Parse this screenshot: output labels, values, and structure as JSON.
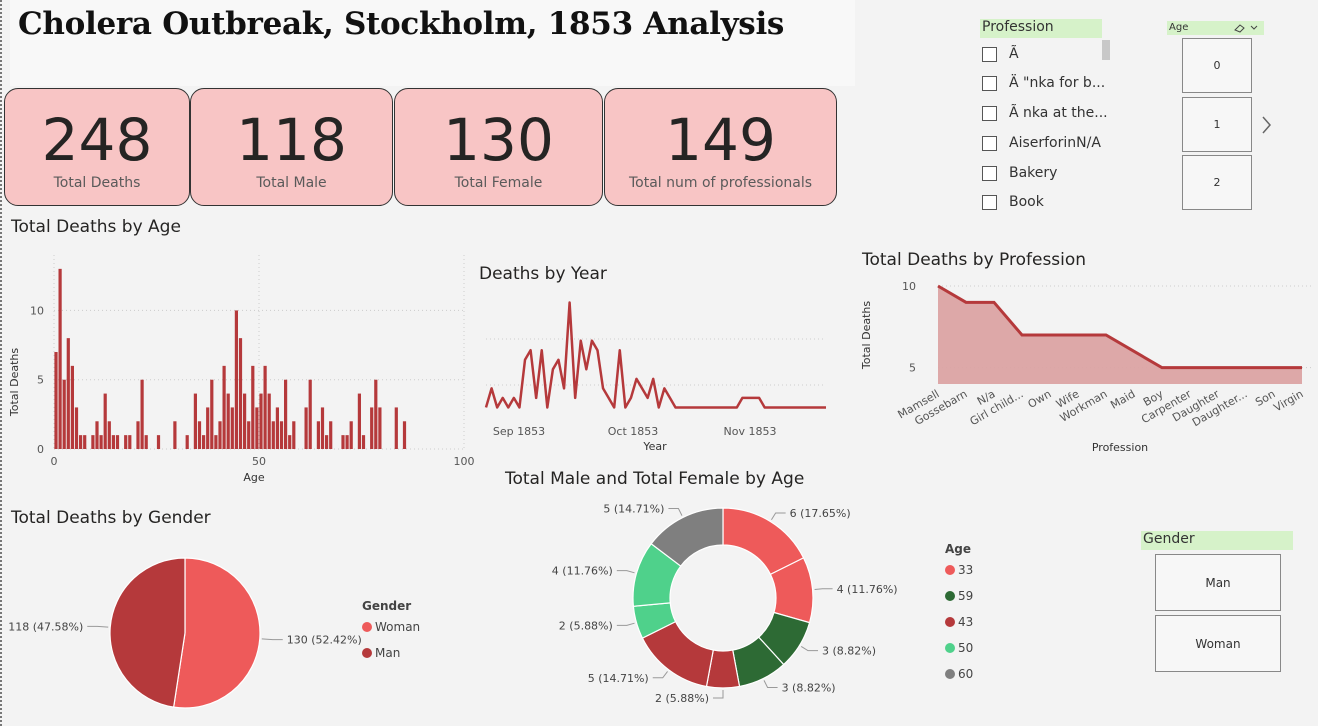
{
  "title": "Cholera Outbreak, Stockholm, 1853 Analysis",
  "kpis": [
    {
      "value": "248",
      "label": "Total Deaths"
    },
    {
      "value": "118",
      "label": "Total Male"
    },
    {
      "value": "130",
      "label": "Total Female"
    },
    {
      "value": "149",
      "label": "Total num of  professionals"
    }
  ],
  "profession_slicer": {
    "header": "Profession",
    "items": [
      "Ã",
      "Ä \"nka for b...",
      "Ã nka at the...",
      "AiserforinN/A",
      "Bakery",
      "Book"
    ]
  },
  "age_slicer": {
    "header": "Age",
    "tiles": [
      "0",
      "1",
      "2"
    ]
  },
  "gender_slicer": {
    "header": "Gender",
    "tiles": [
      "Man",
      "Woman"
    ]
  },
  "colors": {
    "dark_red": "#b5393b",
    "red": "#ee5a5a",
    "dark_green": "#2d6a34",
    "light_green": "#4fd18b",
    "gray": "#7f7f7f",
    "area_fill": "#dba3a3",
    "kpi_bg": "#f8c5c5"
  },
  "chart_data": [
    {
      "id": "age",
      "type": "bar",
      "title": "Total Deaths by Age",
      "xlabel": "Age",
      "ylabel": "Total Deaths",
      "xticks": [
        0,
        50,
        100
      ],
      "yticks": [
        0,
        5,
        10
      ],
      "xlim": [
        0,
        100
      ],
      "ylim": [
        0,
        14
      ],
      "x": [
        0,
        1,
        2,
        3,
        4,
        5,
        6,
        7,
        8,
        9,
        10,
        11,
        12,
        13,
        14,
        15,
        16,
        17,
        18,
        19,
        20,
        21,
        22,
        23,
        24,
        25,
        26,
        27,
        28,
        29,
        30,
        31,
        32,
        33,
        34,
        35,
        36,
        37,
        38,
        39,
        40,
        41,
        42,
        43,
        44,
        45,
        46,
        47,
        48,
        49,
        50,
        51,
        52,
        53,
        54,
        55,
        56,
        57,
        58,
        59,
        60,
        61,
        62,
        63,
        64,
        65,
        66,
        67,
        68,
        69,
        70,
        71,
        72,
        73,
        74,
        75,
        76,
        77,
        78,
        79,
        80,
        81,
        82,
        83,
        84,
        85,
        86
      ],
      "values": [
        7,
        13,
        5,
        8,
        6,
        3,
        1,
        1,
        0,
        1,
        2,
        1,
        4,
        2,
        1,
        1,
        0,
        1,
        1,
        0,
        2,
        5,
        1,
        0,
        0,
        1,
        0,
        0,
        0,
        2,
        0,
        0,
        1,
        0,
        4,
        2,
        1,
        3,
        5,
        1,
        2,
        6,
        4,
        3,
        10,
        8,
        4,
        2,
        6,
        3,
        4,
        6,
        4,
        2,
        3,
        2,
        5,
        1,
        2,
        0,
        0,
        3,
        5,
        0,
        2,
        3,
        1,
        2,
        0,
        0,
        1,
        1,
        2,
        0,
        4,
        1,
        0,
        3,
        5,
        3,
        0,
        0,
        0,
        3,
        0,
        2,
        0
      ],
      "series_color": "#b5393b"
    },
    {
      "id": "year",
      "type": "line",
      "title": "Deaths by Year",
      "xlabel": "Year",
      "xticks": [
        "Sep 1853",
        "Oct 1853",
        "Nov 1853"
      ],
      "ylim": [
        0,
        13
      ],
      "values": [
        1,
        3,
        1,
        2,
        1,
        2,
        1,
        6,
        7,
        2,
        7,
        1,
        5,
        6,
        3,
        12,
        2,
        8,
        5,
        8,
        7,
        3,
        2,
        1,
        7,
        1,
        2,
        4,
        3,
        2,
        4,
        1,
        3,
        2,
        1,
        1,
        1,
        1,
        1,
        1,
        1,
        1,
        1,
        1,
        1,
        1,
        2,
        2,
        2,
        2,
        1,
        1,
        1,
        1,
        1,
        1,
        1,
        1,
        1,
        1,
        1,
        1
      ],
      "series_color": "#b5393b"
    },
    {
      "id": "profession",
      "type": "area",
      "title": "Total Deaths by Profession",
      "xlabel": "Profession",
      "ylabel": "Total Deaths",
      "categories": [
        "Mamsell",
        "Gossebarn",
        "N/a",
        "Girl child...",
        "Own",
        "Wife",
        "Workman",
        "Maid",
        "Boy",
        "Carpenter",
        "Daughter",
        "Daughter...",
        "Son",
        "Virgin"
      ],
      "values": [
        10,
        9,
        9,
        7,
        7,
        7,
        7,
        6,
        5,
        5,
        5,
        5,
        5,
        5
      ],
      "yticks": [
        5,
        10
      ],
      "ylim": [
        4,
        10
      ],
      "series_color": "#b5393b"
    },
    {
      "id": "gender",
      "type": "pie",
      "title": "Total Deaths by Gender",
      "legend_title": "Gender",
      "slices": [
        {
          "name": "Woman",
          "value": 130,
          "label": "130 (52.42%)",
          "color": "#ee5a5a"
        },
        {
          "name": "Man",
          "value": 118,
          "label": "118 (47.58%)",
          "color": "#b5393b"
        }
      ]
    },
    {
      "id": "male_female_age",
      "type": "pie",
      "title": "Total Male and Total Female by Age",
      "legend_title": "Age",
      "legend": [
        {
          "name": "33",
          "color": "#ee5a5a"
        },
        {
          "name": "59",
          "color": "#2d6a34"
        },
        {
          "name": "43",
          "color": "#b5393b"
        },
        {
          "name": "50",
          "color": "#4fd18b"
        },
        {
          "name": "60",
          "color": "#7f7f7f"
        }
      ],
      "slices": [
        {
          "value": 6,
          "label": "6 (17.65%)",
          "color": "#ee5a5a"
        },
        {
          "value": 4,
          "label": "4 (11.76%)",
          "color": "#ee5a5a"
        },
        {
          "value": 3,
          "label": "3 (8.82%)",
          "color": "#2d6a34"
        },
        {
          "value": 3,
          "label": "3 (8.82%)",
          "color": "#2d6a34"
        },
        {
          "value": 2,
          "label": "2 (5.88%)",
          "color": "#b5393b"
        },
        {
          "value": 5,
          "label": "5 (14.71%)",
          "color": "#b5393b"
        },
        {
          "value": 2,
          "label": "2 (5.88%)",
          "color": "#4fd18b"
        },
        {
          "value": 4,
          "label": "4 (11.76%)",
          "color": "#4fd18b"
        },
        {
          "value": 5,
          "label": "5 (14.71%)",
          "color": "#7f7f7f"
        }
      ]
    }
  ]
}
